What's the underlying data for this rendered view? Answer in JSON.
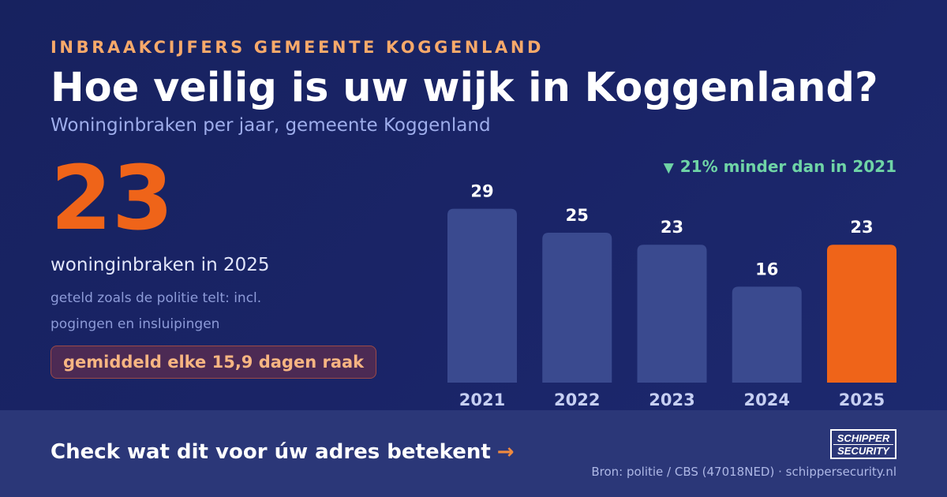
{
  "header": {
    "eyebrow": "INBRAAKCIJFERS GEMEENTE KOGGENLAND",
    "title": "Hoe veilig is uw wijk in Koggenland?",
    "subtitle": "Woninginbraken per jaar, gemeente Koggenland"
  },
  "highlight": {
    "value": "23",
    "caption": "woninginbraken in 2025",
    "note": "geteld zoals de politie telt: incl. pogingen en insluipingen",
    "badge": "gemiddeld elke 15,9 dagen raak"
  },
  "delta": {
    "arrow": "▼",
    "text": "21% minder dan in 2021"
  },
  "chart_data": {
    "type": "bar",
    "categories": [
      "2021",
      "2022",
      "2023",
      "2024",
      "2025"
    ],
    "values": [
      29,
      25,
      23,
      16,
      23
    ],
    "highlight_category": "2025",
    "colors": {
      "bar": "#3a4a8f",
      "highlight": "#ef6419",
      "value_label": "#ffffff",
      "tick_label": "#c6cff2"
    },
    "grid": false
  },
  "footer": {
    "cta": "Check wat dit voor úw adres betekent",
    "cta_arrow": "→",
    "logo_line1": "SCHIPPER",
    "logo_line2": "SECURITY",
    "source": "Bron: politie / CBS (47018NED) · schippersecurity.nl"
  }
}
